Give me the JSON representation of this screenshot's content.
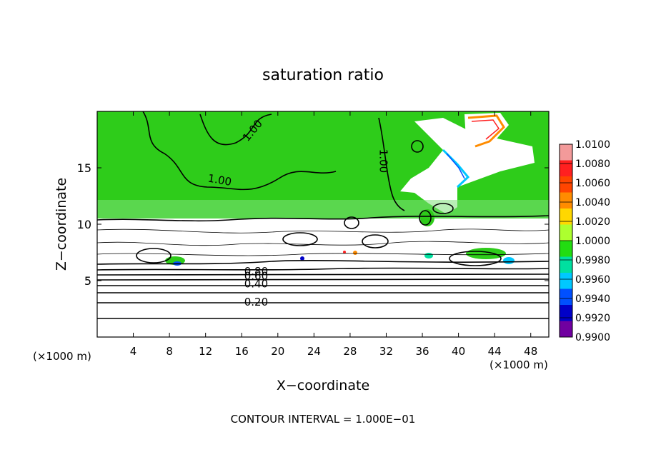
{
  "chart_data": {
    "type": "heatmap",
    "title": "saturation ratio",
    "xlabel": "X−coordinate",
    "ylabel": "Z−coordinate",
    "x_unit_left": "(×1000 m)",
    "x_unit_right": "(×1000 m)",
    "xlim": [
      0,
      50
    ],
    "ylim": [
      0,
      20
    ],
    "x_ticks": [
      4,
      8,
      12,
      16,
      20,
      24,
      28,
      32,
      36,
      40,
      44,
      48
    ],
    "x_tick_labels": [
      "4",
      "8",
      "12",
      "16",
      "20",
      "24",
      "28",
      "32",
      "36",
      "40",
      "44",
      "48"
    ],
    "y_ticks": [
      5,
      10,
      15
    ],
    "y_tick_labels": [
      "5",
      "10",
      "15"
    ],
    "footer": "CONTOUR INTERVAL = 1.000E−01",
    "contour_interval": 0.1,
    "contour_labels": [
      {
        "text": "1.00",
        "x": 17.5,
        "y": 18.1,
        "rotate": -50
      },
      {
        "text": "1.00",
        "x": 13.5,
        "y": 13.6,
        "rotate": 10
      },
      {
        "text": "1.00",
        "x": 31.3,
        "y": 15.6,
        "rotate": 90
      },
      {
        "text": "0.80",
        "x": 17.6,
        "y": 5.5,
        "rotate": 0
      },
      {
        "text": "0.60",
        "x": 17.6,
        "y": 5.1,
        "rotate": 0
      },
      {
        "text": "0.40",
        "x": 17.6,
        "y": 4.4,
        "rotate": 0
      },
      {
        "text": "0.20",
        "x": 17.6,
        "y": 2.8,
        "rotate": 0
      }
    ],
    "colorbar": {
      "levels": [
        "1.0100",
        "1.0080",
        "1.0060",
        "1.0040",
        "1.0020",
        "1.0000",
        "0.9980",
        "0.9960",
        "0.9940",
        "0.9920",
        "0.9900"
      ],
      "colors": [
        "#f39a9a",
        "#ff2020",
        "#ff4500",
        "#ff8c00",
        "#ffd700",
        "#adff2f",
        "#22dd11",
        "#00e0a0",
        "#00c8ff",
        "#0050ff",
        "#0000c8",
        "#7000a0"
      ]
    },
    "colors": {
      "saturated": "#2ecc1a",
      "supersaturated": "#ff8c00",
      "subsaturated": "#ffffff",
      "contour": "#000000"
    }
  }
}
